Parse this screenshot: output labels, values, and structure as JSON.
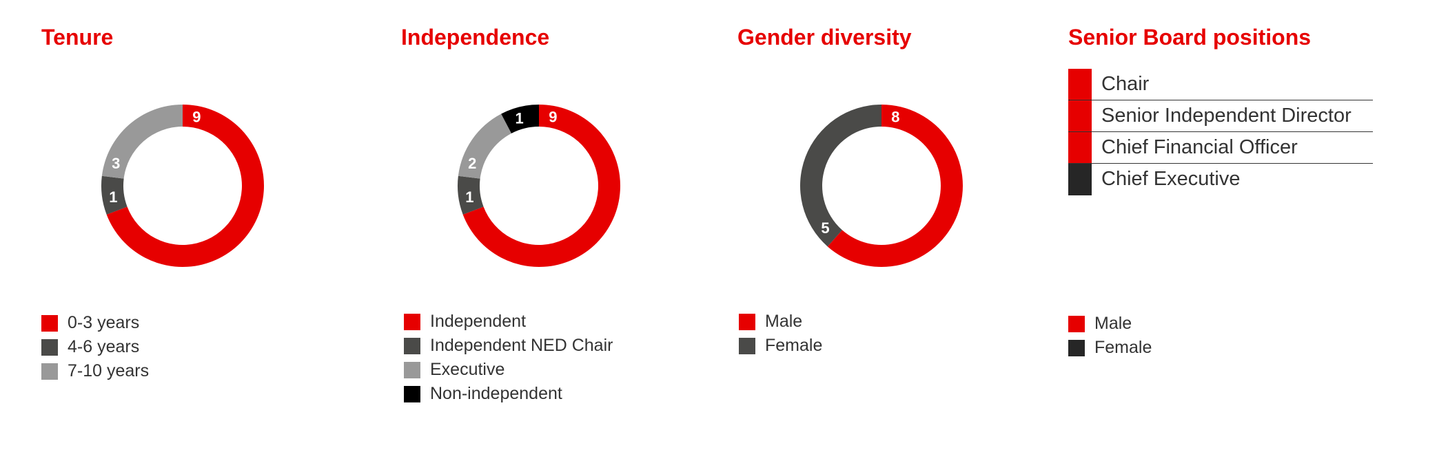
{
  "colors": {
    "red": "#e60000",
    "dark_grey": "#4a4a48",
    "mid_grey": "#999999",
    "black": "#000000",
    "charcoal": "#262626"
  },
  "chart_data": [
    {
      "type": "pie",
      "title": "Tenure",
      "categories": [
        "0-3 years",
        "4-6 years",
        "7-10 years"
      ],
      "values": [
        9,
        1,
        3
      ],
      "colors": [
        "#e60000",
        "#4a4a48",
        "#999999"
      ],
      "legend": "bottom-left"
    },
    {
      "type": "pie",
      "title": "Independence",
      "categories": [
        "Independent",
        "Independent NED Chair",
        "Executive",
        "Non-independent"
      ],
      "values": [
        9,
        1,
        2,
        1
      ],
      "colors": [
        "#e60000",
        "#4a4a48",
        "#999999",
        "#000000"
      ],
      "legend": "bottom-left"
    },
    {
      "type": "pie",
      "title": "Gender diversity",
      "categories": [
        "Male",
        "Female"
      ],
      "values": [
        8,
        5
      ],
      "colors": [
        "#e60000",
        "#4a4a48"
      ],
      "legend": "bottom-left"
    }
  ],
  "senior_board": {
    "title": "Senior Board positions",
    "positions": [
      {
        "label": "Chair",
        "color": "#e60000"
      },
      {
        "label": "Senior Independent Director",
        "color": "#e60000"
      },
      {
        "label": "Chief Financial Officer",
        "color": "#e60000"
      },
      {
        "label": "Chief Executive",
        "color": "#262626"
      }
    ],
    "legend": [
      {
        "label": "Male",
        "color": "#e60000"
      },
      {
        "label": "Female",
        "color": "#262626"
      }
    ]
  }
}
